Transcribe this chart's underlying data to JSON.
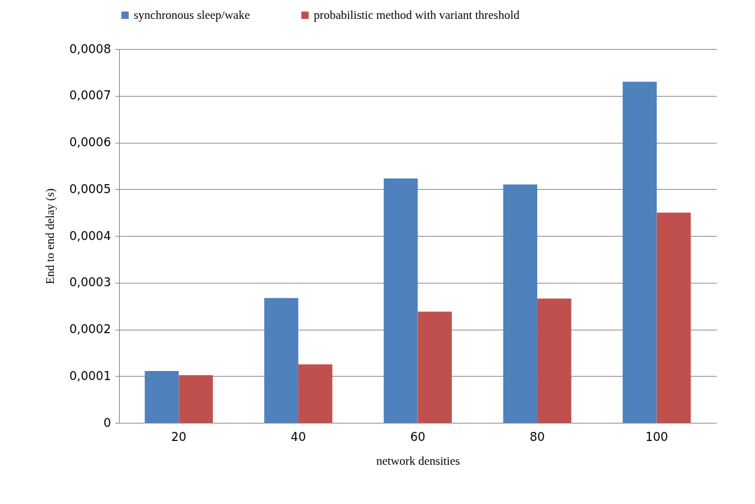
{
  "chart_data": {
    "type": "bar",
    "xlabel": "network densities",
    "ylabel": "End to end delay (s)",
    "categories": [
      "20",
      "40",
      "60",
      "80",
      "100"
    ],
    "series": [
      {
        "name": "synchronous sleep/wake",
        "color": "#4f81bd",
        "values": [
          0.000111,
          0.000267,
          0.000523,
          0.00051,
          0.00073
        ]
      },
      {
        "name": "probabilistic method with variant threshold",
        "color": "#c0504d",
        "values": [
          0.000102,
          0.000125,
          0.000238,
          0.000266,
          0.00045
        ]
      }
    ],
    "ylim": [
      0,
      0.0008
    ],
    "yticks": [
      0,
      {
        "value": 0.0001,
        "label": "0,0001"
      },
      {
        "value": 0.0002,
        "label": "0,0002"
      },
      {
        "value": 0.0003,
        "label": "0,0003"
      },
      {
        "value": 0.0004,
        "label": "0,0004"
      },
      {
        "value": 0.0005,
        "label": "0,0005"
      },
      {
        "value": 0.0006,
        "label": "0,0006"
      },
      {
        "value": 0.0007,
        "label": "0,0007"
      },
      {
        "value": 0.0008,
        "label": "0,0008"
      }
    ],
    "grid": "y",
    "legend": "top"
  }
}
